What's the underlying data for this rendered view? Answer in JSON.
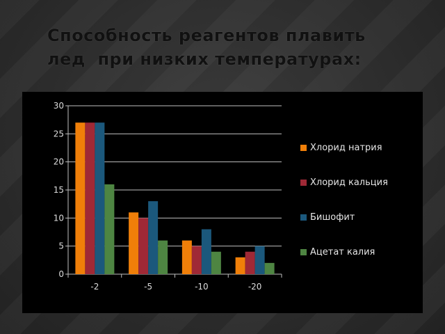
{
  "slide": {
    "title_line1": "Способность реагентов плавить",
    "title_line2": "лед  при низких температурах:"
  },
  "chart_data": {
    "type": "bar",
    "categories": [
      "-2",
      "-5",
      "-10",
      "-20"
    ],
    "ylim": [
      0,
      30
    ],
    "yticks": [
      0,
      5,
      10,
      15,
      20,
      25,
      30
    ],
    "ytick_labels": [
      "0",
      "5",
      "10",
      "15",
      "20",
      "25",
      "30"
    ],
    "grid": true,
    "legend_position": "right",
    "series": [
      {
        "name": "Хлорид натрия",
        "color": "#f07f09",
        "values": [
          27,
          11,
          6,
          3
        ]
      },
      {
        "name": "Хлорид кальция",
        "color": "#9f2936",
        "values": [
          27,
          10,
          5,
          4
        ]
      },
      {
        "name": "Бишофит",
        "color": "#1b587c",
        "values": [
          27,
          13,
          8,
          5
        ]
      },
      {
        "name": "Ацетат калия",
        "color": "#4e8542",
        "values": [
          16,
          6,
          4,
          2
        ]
      }
    ]
  }
}
